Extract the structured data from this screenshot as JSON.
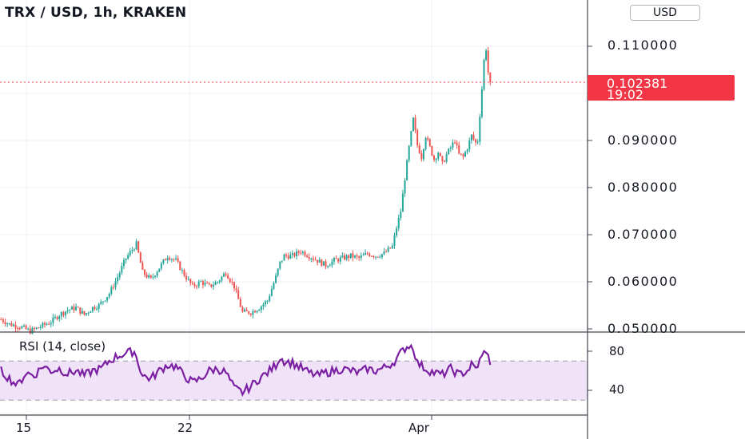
{
  "header": {
    "title": "TRX / USD, 1h, KRAKEN",
    "currency_button": "USD"
  },
  "price_tag": {
    "value": "0.102381",
    "countdown": "19:02"
  },
  "rsi": {
    "label": "RSI (14, close)",
    "ticks": [
      "80",
      "40"
    ],
    "upper_band": 70,
    "lower_band": 30
  },
  "x_ticks": [
    "15",
    "22",
    "Apr"
  ],
  "y_ticks": [
    "0.110000",
    "0.090000",
    "0.080000",
    "0.070000",
    "0.060000",
    "0.050000"
  ],
  "colors": {
    "up": "#26a69a",
    "down": "#ef5350",
    "rsi_line": "#7b1fa2",
    "rsi_band": "#f0e3f8",
    "price_line": "#f23645"
  },
  "chart_data": {
    "type": "candlestick",
    "symbol": "TRX / USD",
    "interval": "1h",
    "exchange": "KRAKEN",
    "last_price": 0.102381,
    "y_range": [
      0.0497,
      0.1115
    ],
    "price_path": [
      [
        0,
        0.052
      ],
      [
        4,
        0.051
      ],
      [
        9,
        0.0505
      ],
      [
        14,
        0.0495
      ],
      [
        19,
        0.0505
      ],
      [
        24,
        0.0515
      ],
      [
        28,
        0.053
      ],
      [
        32,
        0.054
      ],
      [
        36,
        0.0545
      ],
      [
        40,
        0.053
      ],
      [
        44,
        0.0545
      ],
      [
        47,
        0.055
      ],
      [
        52,
        0.0575
      ],
      [
        56,
        0.061
      ],
      [
        60,
        0.065
      ],
      [
        65,
        0.068
      ],
      [
        68,
        0.062
      ],
      [
        72,
        0.0605
      ],
      [
        76,
        0.063
      ],
      [
        80,
        0.0655
      ],
      [
        84,
        0.0645
      ],
      [
        88,
        0.0615
      ],
      [
        92,
        0.059
      ],
      [
        96,
        0.06
      ],
      [
        100,
        0.059
      ],
      [
        104,
        0.06
      ],
      [
        108,
        0.062
      ],
      [
        112,
        0.059
      ],
      [
        116,
        0.0535
      ],
      [
        120,
        0.0535
      ],
      [
        124,
        0.0545
      ],
      [
        128,
        0.056
      ],
      [
        132,
        0.061
      ],
      [
        134,
        0.064
      ],
      [
        136,
        0.0655
      ],
      [
        140,
        0.0655
      ],
      [
        144,
        0.0665
      ],
      [
        148,
        0.0655
      ],
      [
        152,
        0.0645
      ],
      [
        156,
        0.0635
      ],
      [
        160,
        0.0645
      ],
      [
        164,
        0.065
      ],
      [
        168,
        0.0655
      ],
      [
        172,
        0.065
      ],
      [
        176,
        0.066
      ],
      [
        180,
        0.0655
      ],
      [
        184,
        0.066
      ],
      [
        188,
        0.0675
      ],
      [
        190,
        0.0715
      ],
      [
        192,
        0.075
      ],
      [
        194,
        0.082
      ],
      [
        196,
        0.0885
      ],
      [
        198,
        0.0945
      ],
      [
        200,
        0.089
      ],
      [
        202,
        0.0865
      ],
      [
        204,
        0.091
      ],
      [
        206,
        0.0885
      ],
      [
        208,
        0.086
      ],
      [
        210,
        0.0875
      ],
      [
        212,
        0.085
      ],
      [
        214,
        0.087
      ],
      [
        216,
        0.0885
      ],
      [
        218,
        0.09
      ],
      [
        220,
        0.087
      ],
      [
        222,
        0.0865
      ],
      [
        224,
        0.0885
      ],
      [
        226,
        0.091
      ],
      [
        228,
        0.0895
      ],
      [
        229,
        0.09
      ],
      [
        231,
        0.101
      ],
      [
        232,
        0.107
      ],
      [
        233,
        0.1095
      ],
      [
        234,
        0.1045
      ],
      [
        235,
        0.102381
      ]
    ],
    "rsi_path": [
      [
        0,
        60
      ],
      [
        4,
        52
      ],
      [
        8,
        45
      ],
      [
        12,
        58
      ],
      [
        16,
        55
      ],
      [
        20,
        65
      ],
      [
        24,
        60
      ],
      [
        28,
        62
      ],
      [
        32,
        57
      ],
      [
        36,
        60
      ],
      [
        40,
        55
      ],
      [
        44,
        60
      ],
      [
        48,
        62
      ],
      [
        52,
        70
      ],
      [
        56,
        75
      ],
      [
        60,
        78
      ],
      [
        64,
        80
      ],
      [
        68,
        55
      ],
      [
        72,
        52
      ],
      [
        76,
        60
      ],
      [
        80,
        66
      ],
      [
        84,
        64
      ],
      [
        88,
        55
      ],
      [
        92,
        48
      ],
      [
        96,
        52
      ],
      [
        100,
        60
      ],
      [
        104,
        62
      ],
      [
        108,
        58
      ],
      [
        112,
        42
      ],
      [
        116,
        38
      ],
      [
        120,
        44
      ],
      [
        124,
        52
      ],
      [
        128,
        58
      ],
      [
        132,
        66
      ],
      [
        134,
        74
      ],
      [
        136,
        70
      ],
      [
        140,
        68
      ],
      [
        144,
        63
      ],
      [
        148,
        58
      ],
      [
        152,
        55
      ],
      [
        156,
        58
      ],
      [
        160,
        60
      ],
      [
        164,
        62
      ],
      [
        168,
        60
      ],
      [
        172,
        58
      ],
      [
        176,
        62
      ],
      [
        180,
        60
      ],
      [
        184,
        63
      ],
      [
        188,
        68
      ],
      [
        190,
        72
      ],
      [
        192,
        78
      ],
      [
        194,
        83
      ],
      [
        196,
        86
      ],
      [
        198,
        84
      ],
      [
        200,
        68
      ],
      [
        204,
        62
      ],
      [
        208,
        58
      ],
      [
        212,
        56
      ],
      [
        216,
        62
      ],
      [
        220,
        56
      ],
      [
        224,
        60
      ],
      [
        226,
        66
      ],
      [
        228,
        62
      ],
      [
        230,
        70
      ],
      [
        232,
        78
      ],
      [
        233,
        82
      ],
      [
        234,
        74
      ],
      [
        235,
        66
      ]
    ]
  }
}
